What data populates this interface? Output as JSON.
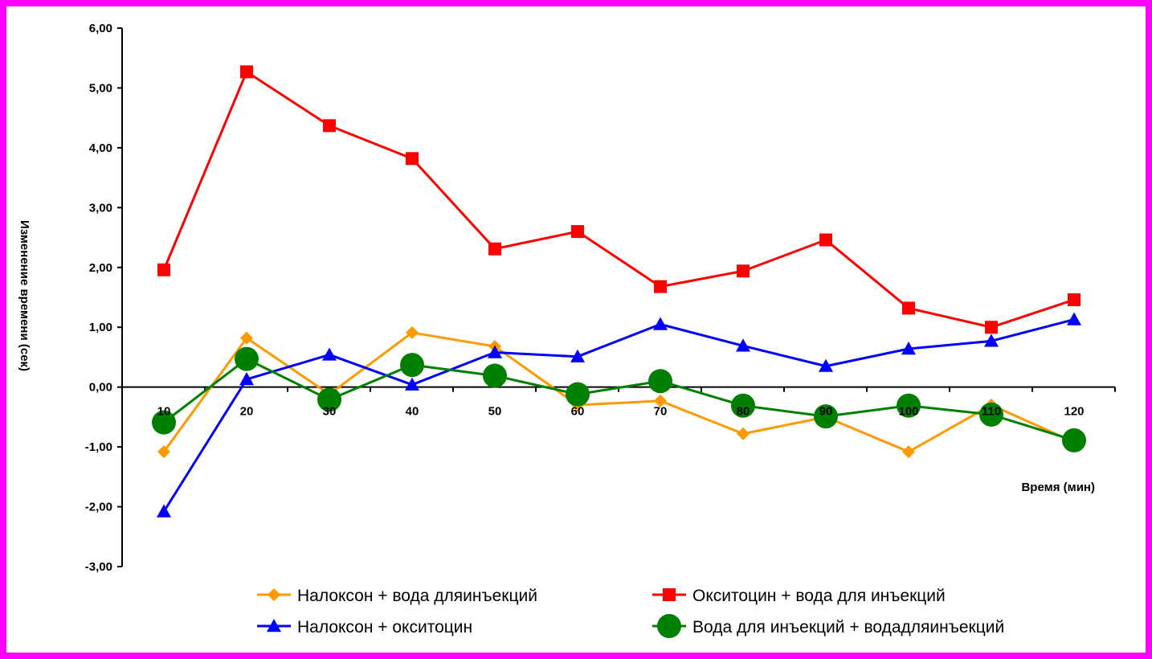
{
  "chart_data": {
    "type": "line",
    "title": "",
    "xlabel": "Время (мин)",
    "ylabel": "Изменение времени (сек)",
    "categories": [
      "10",
      "20",
      "30",
      "40",
      "50",
      "60",
      "70",
      "80",
      "90",
      "100",
      "110",
      "120"
    ],
    "y_ticks": [
      "-3,00",
      "-2,00",
      "-1,00",
      "0,00",
      "1,00",
      "2,00",
      "3,00",
      "4,00",
      "5,00",
      "6,00"
    ],
    "ylim": [
      -3,
      6
    ],
    "grid": false,
    "legend_position": "bottom",
    "series": [
      {
        "name": "Налоксон + вода дляинъекций",
        "color": "#ff9900",
        "marker": "diamond",
        "values": [
          -1.08,
          0.82,
          -0.12,
          0.91,
          0.68,
          -0.3,
          -0.23,
          -0.78,
          -0.5,
          -1.08,
          -0.3,
          -0.92
        ]
      },
      {
        "name": "Окситоцин + вода для инъекций",
        "color": "#ff0000",
        "marker": "square",
        "values": [
          1.96,
          5.27,
          4.37,
          3.82,
          2.31,
          2.6,
          1.68,
          1.94,
          2.46,
          1.32,
          1.0,
          1.46
        ]
      },
      {
        "name": "Налоксон + окситоцин",
        "color": "#0000ff",
        "marker": "triangle",
        "values": [
          -2.08,
          0.13,
          0.54,
          0.04,
          0.58,
          0.51,
          1.05,
          0.69,
          0.35,
          0.64,
          0.77,
          1.13
        ]
      },
      {
        "name": "Вода для инъекций + водадляинъекций",
        "color": "#008000",
        "marker": "circle",
        "values": [
          -0.59,
          0.47,
          -0.21,
          0.37,
          0.19,
          -0.12,
          0.1,
          -0.31,
          -0.49,
          -0.31,
          -0.46,
          -0.89
        ]
      }
    ]
  }
}
